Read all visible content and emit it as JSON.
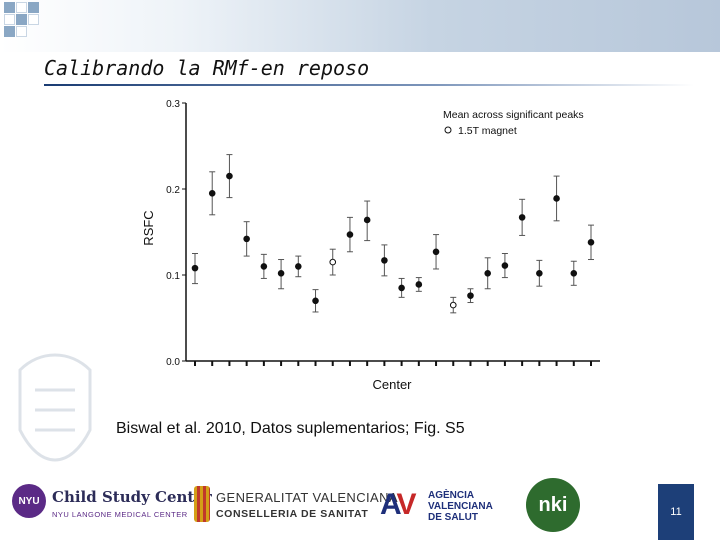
{
  "slide": {
    "title": "Calibrando la RMf-en reposo",
    "caption": "Biswal et al. 2010, Datos suplementarios; Fig. S5",
    "page_number": "11"
  },
  "logos": {
    "nyu_badge": "NYU",
    "nyu_main": "Child Study Center",
    "nyu_sub": "NYU LANGONE MEDICAL CENTER",
    "gv_main": "GENERALITAT VALENCIANA",
    "gv_sub": "CONSELLERIA DE SANITAT",
    "avs_l1": "AGÈNCIA",
    "avs_l2": "VALENCIANA",
    "avs_l3": "DE SALUT",
    "nki_text": "nki"
  },
  "colors": {
    "accent": "#1d3f78",
    "marker": "#111111"
  },
  "chart_data": {
    "type": "scatter",
    "xlabel": "Center",
    "ylabel": "RSFC",
    "ylim": [
      0,
      0.3
    ],
    "yticks": [
      "0.0",
      "0.1",
      "0.2",
      "0.3"
    ],
    "grid": false,
    "legend_position": "top-right",
    "legend": {
      "title": "Mean across significant peaks",
      "entries": [
        {
          "marker": "open-circle",
          "label": "1.5T magnet"
        }
      ]
    },
    "points": [
      {
        "center": 1,
        "value": 0.108,
        "low": 0.09,
        "high": 0.125,
        "open": false
      },
      {
        "center": 2,
        "value": 0.195,
        "low": 0.17,
        "high": 0.22,
        "open": false
      },
      {
        "center": 3,
        "value": 0.215,
        "low": 0.19,
        "high": 0.24,
        "open": false
      },
      {
        "center": 4,
        "value": 0.142,
        "low": 0.122,
        "high": 0.162,
        "open": false
      },
      {
        "center": 5,
        "value": 0.11,
        "low": 0.096,
        "high": 0.124,
        "open": false
      },
      {
        "center": 6,
        "value": 0.102,
        "low": 0.084,
        "high": 0.118,
        "open": false
      },
      {
        "center": 7,
        "value": 0.11,
        "low": 0.098,
        "high": 0.122,
        "open": false
      },
      {
        "center": 8,
        "value": 0.07,
        "low": 0.057,
        "high": 0.083,
        "open": false
      },
      {
        "center": 9,
        "value": 0.115,
        "low": 0.1,
        "high": 0.13,
        "open": true
      },
      {
        "center": 10,
        "value": 0.147,
        "low": 0.127,
        "high": 0.167,
        "open": false
      },
      {
        "center": 11,
        "value": 0.164,
        "low": 0.14,
        "high": 0.186,
        "open": false
      },
      {
        "center": 12,
        "value": 0.117,
        "low": 0.099,
        "high": 0.135,
        "open": false
      },
      {
        "center": 13,
        "value": 0.085,
        "low": 0.074,
        "high": 0.096,
        "open": false
      },
      {
        "center": 14,
        "value": 0.089,
        "low": 0.081,
        "high": 0.097,
        "open": false
      },
      {
        "center": 15,
        "value": 0.127,
        "low": 0.107,
        "high": 0.147,
        "open": false
      },
      {
        "center": 16,
        "value": 0.065,
        "low": 0.056,
        "high": 0.074,
        "open": true
      },
      {
        "center": 17,
        "value": 0.076,
        "low": 0.068,
        "high": 0.084,
        "open": false
      },
      {
        "center": 18,
        "value": 0.102,
        "low": 0.084,
        "high": 0.12,
        "open": false
      },
      {
        "center": 19,
        "value": 0.111,
        "low": 0.097,
        "high": 0.125,
        "open": false
      },
      {
        "center": 20,
        "value": 0.167,
        "low": 0.146,
        "high": 0.188,
        "open": false
      },
      {
        "center": 21,
        "value": 0.102,
        "low": 0.087,
        "high": 0.117,
        "open": false
      },
      {
        "center": 22,
        "value": 0.189,
        "low": 0.163,
        "high": 0.215,
        "open": false
      },
      {
        "center": 23,
        "value": 0.102,
        "low": 0.088,
        "high": 0.116,
        "open": false
      },
      {
        "center": 24,
        "value": 0.138,
        "low": 0.118,
        "high": 0.158,
        "open": false
      }
    ]
  }
}
